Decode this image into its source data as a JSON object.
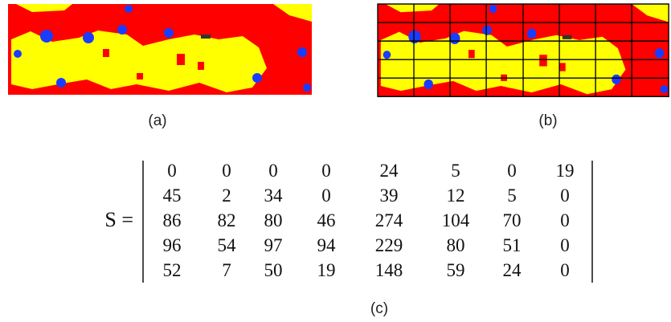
{
  "figure": {
    "panels": [
      {
        "caption": "(a)"
      },
      {
        "caption": "(b)"
      }
    ],
    "matrix": {
      "lhs": "S =",
      "rows": [
        [
          0,
          0,
          0,
          0,
          24,
          5,
          0,
          19
        ],
        [
          45,
          2,
          34,
          0,
          39,
          12,
          5,
          0
        ],
        [
          86,
          82,
          80,
          46,
          274,
          104,
          70,
          0
        ],
        [
          96,
          54,
          97,
          94,
          229,
          80,
          51,
          0
        ],
        [
          52,
          7,
          50,
          19,
          148,
          59,
          24,
          0
        ]
      ],
      "caption": "(c)"
    }
  }
}
